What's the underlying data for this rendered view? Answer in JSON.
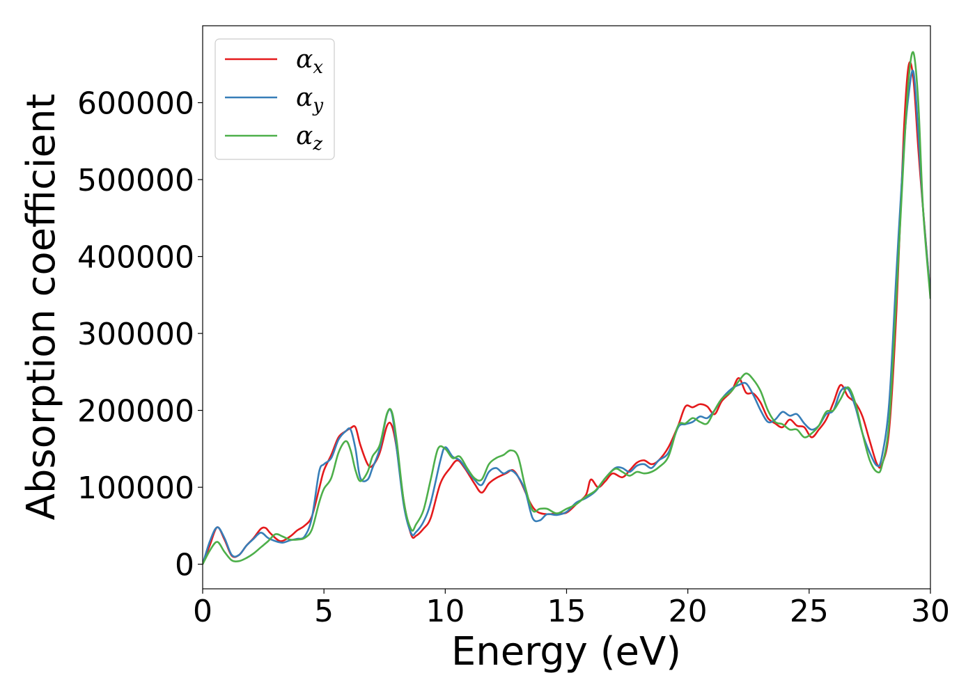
{
  "chart_data": {
    "type": "line",
    "title": "",
    "xlabel": "Energy (eV)",
    "ylabel": "Absorption coefficient",
    "xlim": [
      0,
      30
    ],
    "ylim": [
      -32000,
      700000
    ],
    "xticks": [
      0,
      5,
      10,
      15,
      20,
      25,
      30
    ],
    "yticks": [
      0,
      100000,
      200000,
      300000,
      400000,
      500000,
      600000
    ],
    "grid": false,
    "legend_position": "top-left",
    "series": [
      {
        "name": "α",
        "subscript": "x",
        "color": "#e41a1c",
        "x": [
          0,
          0.3,
          0.6,
          0.9,
          1.2,
          1.5,
          1.8,
          2.1,
          2.4,
          2.6,
          2.8,
          3.2,
          3.6,
          3.9,
          4.2,
          4.5,
          4.8,
          5.0,
          5.3,
          5.6,
          5.9,
          6.1,
          6.3,
          6.5,
          6.8,
          7.0,
          7.3,
          7.6,
          7.8,
          8.0,
          8.3,
          8.6,
          8.8,
          9.1,
          9.4,
          9.8,
          10.2,
          10.5,
          10.8,
          11.2,
          11.5,
          11.8,
          12.1,
          12.5,
          12.8,
          13.1,
          13.5,
          13.8,
          14.2,
          14.6,
          15.0,
          15.4,
          15.8,
          16.0,
          16.3,
          16.6,
          16.9,
          17.3,
          17.6,
          17.9,
          18.2,
          18.5,
          18.8,
          19.2,
          19.6,
          19.9,
          20.2,
          20.5,
          20.8,
          21.1,
          21.4,
          21.8,
          22.1,
          22.4,
          22.7,
          23.0,
          23.3,
          23.6,
          23.9,
          24.2,
          24.5,
          24.8,
          25.1,
          25.4,
          25.7,
          26.0,
          26.3,
          26.6,
          26.9,
          27.2,
          27.5,
          27.8,
          28.0,
          28.3,
          28.6,
          28.9,
          29.1,
          29.3,
          29.5,
          29.7,
          30.0
        ],
        "y": [
          0,
          25000,
          48000,
          32000,
          11000,
          12000,
          24000,
          34000,
          46000,
          47000,
          40000,
          30000,
          36000,
          44000,
          50000,
          62000,
          98000,
          122000,
          142000,
          165000,
          173000,
          177000,
          178000,
          155000,
          130000,
          128000,
          145000,
          180000,
          180000,
          150000,
          80000,
          38000,
          37000,
          46000,
          60000,
          105000,
          125000,
          135000,
          125000,
          105000,
          93000,
          105000,
          112000,
          118000,
          122000,
          108000,
          80000,
          68000,
          65000,
          66000,
          67000,
          78000,
          90000,
          110000,
          100000,
          108000,
          118000,
          113000,
          122000,
          132000,
          135000,
          130000,
          135000,
          152000,
          180000,
          205000,
          204000,
          208000,
          205000,
          195000,
          212000,
          225000,
          242000,
          223000,
          222000,
          210000,
          190000,
          183000,
          178000,
          188000,
          180000,
          178000,
          165000,
          175000,
          188000,
          210000,
          233000,
          218000,
          210000,
          192000,
          160000,
          130000,
          130000,
          175000,
          330000,
          560000,
          648000,
          630000,
          540000,
          460000,
          350000
        ]
      },
      {
        "name": "α",
        "subscript": "y",
        "color": "#377eb8",
        "x": [
          0,
          0.3,
          0.6,
          0.9,
          1.2,
          1.5,
          1.8,
          2.1,
          2.4,
          2.7,
          3.0,
          3.3,
          3.6,
          3.9,
          4.2,
          4.5,
          4.8,
          5.0,
          5.3,
          5.6,
          5.9,
          6.1,
          6.3,
          6.5,
          6.8,
          7.0,
          7.3,
          7.6,
          7.8,
          8.0,
          8.3,
          8.6,
          8.8,
          9.1,
          9.4,
          9.8,
          10.0,
          10.3,
          10.6,
          10.9,
          11.2,
          11.5,
          11.8,
          12.1,
          12.4,
          12.7,
          13.0,
          13.3,
          13.6,
          13.9,
          14.2,
          14.6,
          15.0,
          15.4,
          15.8,
          16.2,
          16.6,
          17.0,
          17.3,
          17.6,
          17.9,
          18.2,
          18.5,
          18.8,
          19.2,
          19.6,
          19.9,
          20.2,
          20.5,
          20.8,
          21.1,
          21.4,
          21.8,
          22.1,
          22.4,
          22.7,
          23.0,
          23.3,
          23.6,
          23.9,
          24.2,
          24.5,
          24.8,
          25.1,
          25.4,
          25.7,
          26.0,
          26.3,
          26.6,
          26.9,
          27.2,
          27.5,
          27.8,
          28.0,
          28.3,
          28.6,
          28.9,
          29.1,
          29.3,
          29.5,
          29.7,
          30.0
        ],
        "y": [
          0,
          30000,
          48000,
          34000,
          12000,
          12000,
          24000,
          33000,
          41000,
          34000,
          30000,
          28000,
          31000,
          33000,
          36000,
          60000,
          120000,
          130000,
          138000,
          162000,
          173000,
          175000,
          150000,
          112000,
          110000,
          125000,
          150000,
          195000,
          196000,
          150000,
          75000,
          40000,
          42000,
          55000,
          80000,
          135000,
          152000,
          140000,
          135000,
          122000,
          110000,
          103000,
          120000,
          125000,
          118000,
          122000,
          114000,
          95000,
          60000,
          57000,
          65000,
          64000,
          68000,
          80000,
          86000,
          95000,
          112000,
          125000,
          125000,
          120000,
          128000,
          130000,
          125000,
          135000,
          145000,
          178000,
          182000,
          185000,
          192000,
          190000,
          200000,
          215000,
          228000,
          233000,
          235000,
          220000,
          200000,
          185000,
          188000,
          198000,
          193000,
          195000,
          183000,
          175000,
          180000,
          195000,
          200000,
          225000,
          228000,
          205000,
          170000,
          145000,
          128000,
          140000,
          210000,
          380000,
          540000,
          610000,
          640000,
          560000,
          460000,
          350000
        ]
      },
      {
        "name": "α",
        "subscript": "z",
        "color": "#4daf4a",
        "x": [
          0,
          0.3,
          0.6,
          0.9,
          1.2,
          1.5,
          1.8,
          2.1,
          2.4,
          2.7,
          3.0,
          3.3,
          3.6,
          3.9,
          4.2,
          4.5,
          4.8,
          5.0,
          5.3,
          5.6,
          5.9,
          6.1,
          6.3,
          6.5,
          6.8,
          7.0,
          7.3,
          7.6,
          7.8,
          8.0,
          8.3,
          8.6,
          8.8,
          9.1,
          9.4,
          9.7,
          10.0,
          10.3,
          10.6,
          10.9,
          11.2,
          11.5,
          11.8,
          12.1,
          12.4,
          12.7,
          13.0,
          13.3,
          13.6,
          13.9,
          14.2,
          14.6,
          15.0,
          15.4,
          15.8,
          16.2,
          16.6,
          17.0,
          17.3,
          17.6,
          17.9,
          18.2,
          18.5,
          18.8,
          19.2,
          19.6,
          19.9,
          20.2,
          20.5,
          20.8,
          21.1,
          21.4,
          21.8,
          22.1,
          22.4,
          22.7,
          23.0,
          23.3,
          23.6,
          23.9,
          24.2,
          24.5,
          24.8,
          25.1,
          25.4,
          25.7,
          26.0,
          26.3,
          26.6,
          26.9,
          27.2,
          27.5,
          27.8,
          28.0,
          28.3,
          28.6,
          28.9,
          29.1,
          29.3,
          29.5,
          29.7,
          30.0
        ],
        "y": [
          0,
          18000,
          29000,
          16000,
          5000,
          4000,
          8000,
          14000,
          22000,
          30000,
          39000,
          36000,
          32000,
          32000,
          34000,
          45000,
          80000,
          98000,
          112000,
          145000,
          160000,
          148000,
          122000,
          108000,
          120000,
          140000,
          155000,
          196000,
          198000,
          160000,
          80000,
          45000,
          52000,
          70000,
          110000,
          150000,
          150000,
          138000,
          140000,
          125000,
          112000,
          110000,
          130000,
          138000,
          142000,
          148000,
          140000,
          100000,
          70000,
          72000,
          72000,
          66000,
          72000,
          78000,
          88000,
          96000,
          112000,
          124000,
          120000,
          115000,
          120000,
          118000,
          120000,
          126000,
          140000,
          180000,
          183000,
          190000,
          185000,
          183000,
          200000,
          215000,
          225000,
          238000,
          248000,
          240000,
          225000,
          200000,
          185000,
          182000,
          175000,
          175000,
          165000,
          170000,
          180000,
          198000,
          200000,
          215000,
          230000,
          210000,
          170000,
          135000,
          120000,
          128000,
          185000,
          350000,
          530000,
          630000,
          665000,
          600000,
          460000,
          345000
        ]
      }
    ]
  }
}
